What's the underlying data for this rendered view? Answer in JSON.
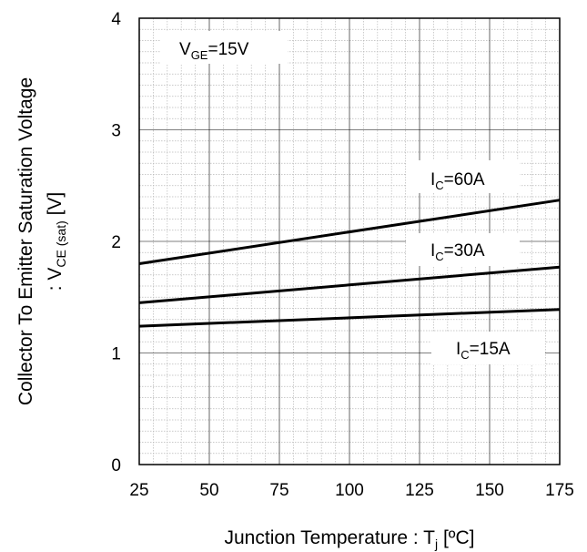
{
  "chart_data": {
    "type": "line",
    "title": "",
    "xlabel": {
      "main": "Junction Temperature : T",
      "sub": "j",
      "tail": " [ºC]"
    },
    "ylabel": {
      "line1": "Collector To Emitter Saturation Voltage",
      "line2_pre": ": V",
      "line2_sub": "CE (sat)",
      "line2_post": " [V]"
    },
    "xlim": [
      25,
      175
    ],
    "ylim": [
      0,
      4
    ],
    "xticks": [
      "25",
      "50",
      "75",
      "100",
      "125",
      "150",
      "175"
    ],
    "yticks": [
      "0",
      "1",
      "2",
      "3",
      "4"
    ],
    "grid": true,
    "minor_grid": true,
    "line_color": "#000000",
    "series": [
      {
        "name": "IC=60A",
        "label_pre": "I",
        "label_sub": "C",
        "label_post": "=60A",
        "x": [
          25,
          175
        ],
        "y": [
          1.8,
          2.37
        ]
      },
      {
        "name": "IC=30A",
        "label_pre": "I",
        "label_sub": "C",
        "label_post": "=30A",
        "x": [
          25,
          175
        ],
        "y": [
          1.45,
          1.77
        ]
      },
      {
        "name": "IC=15A",
        "label_pre": "I",
        "label_sub": "C",
        "label_post": "=15A",
        "x": [
          25,
          175
        ],
        "y": [
          1.24,
          1.39
        ]
      }
    ],
    "annotation": {
      "pre": "V",
      "sub": "GE",
      "post": "=15V"
    }
  }
}
